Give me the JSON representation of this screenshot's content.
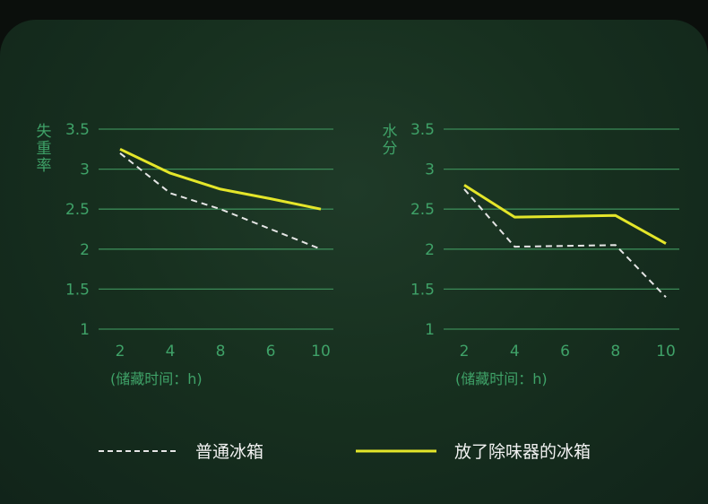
{
  "colors": {
    "grid": "#3b8a57",
    "tick": "#3fa268",
    "series_plain": "#e6e6e6",
    "series_deodorizer": "#e4e62a",
    "legend_text": "#f2f2f2"
  },
  "legend": {
    "plain_label": "普通冰箱",
    "deodorizer_label": "放了除味器的冰箱"
  },
  "chart_data": [
    {
      "type": "line",
      "ylabel": "失重率",
      "xlabel": "(储藏时间：h)",
      "x_tick_labels": [
        "2",
        "4",
        "8",
        "6",
        "10"
      ],
      "y_ticks": [
        "1",
        "1.5",
        "2",
        "2.5",
        "3",
        "3.5"
      ],
      "ylim": [
        1,
        3.5
      ],
      "grid": true,
      "series": [
        {
          "name": "普通冰箱",
          "style": "dashed",
          "x": [
            2,
            4,
            8,
            6,
            10
          ],
          "values": [
            3.2,
            2.7,
            2.5,
            2.25,
            2.0
          ]
        },
        {
          "name": "放了除味器的冰箱",
          "style": "solid",
          "x": [
            2,
            4,
            8,
            6,
            10
          ],
          "values": [
            3.25,
            2.95,
            2.75,
            2.63,
            2.5
          ]
        }
      ]
    },
    {
      "type": "line",
      "ylabel": "水分",
      "xlabel": "(储藏时间：h)",
      "x_tick_labels": [
        "2",
        "4",
        "6",
        "8",
        "10"
      ],
      "y_ticks": [
        "1",
        "1.5",
        "2",
        "2.5",
        "3",
        "3.5"
      ],
      "ylim": [
        1,
        3.5
      ],
      "grid": true,
      "series": [
        {
          "name": "普通冰箱",
          "style": "dashed",
          "x": [
            2,
            4,
            6,
            8,
            10
          ],
          "values": [
            2.75,
            2.03,
            2.04,
            2.05,
            1.4
          ]
        },
        {
          "name": "放了除味器的冰箱",
          "style": "solid",
          "x": [
            2,
            4,
            6,
            8,
            10
          ],
          "values": [
            2.8,
            2.4,
            2.41,
            2.42,
            2.07
          ]
        }
      ]
    }
  ]
}
